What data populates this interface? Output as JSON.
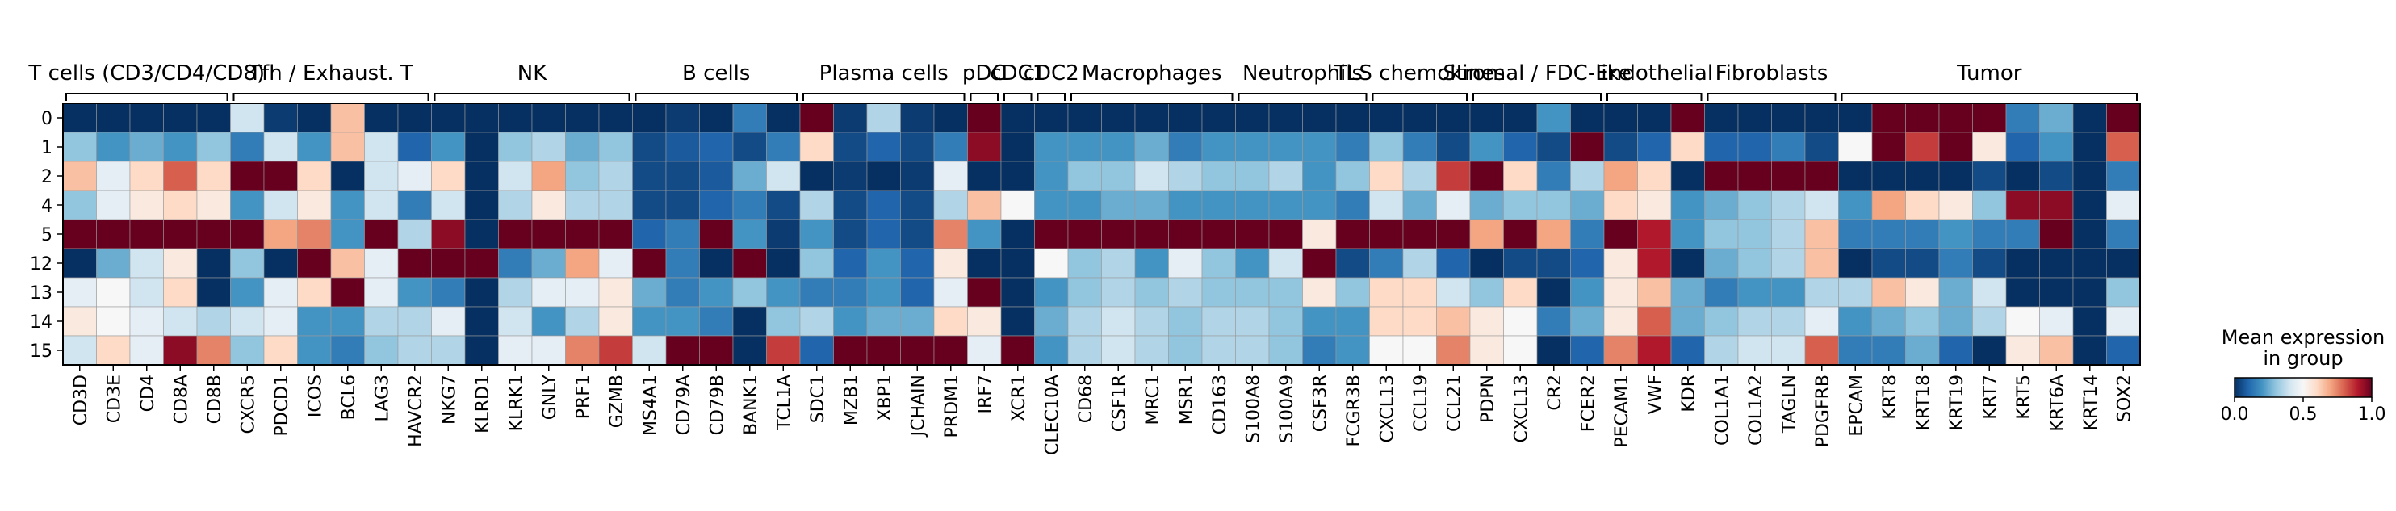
{
  "chart_data": {
    "type": "heatmap",
    "colormap": "RdBu_r",
    "rows": [
      "0",
      "1",
      "2",
      "4",
      "5",
      "12",
      "13",
      "14",
      "15"
    ],
    "columns": [
      "CD3D",
      "CD3E",
      "CD4",
      "CD8A",
      "CD8B",
      "CXCR5",
      "PDCD1",
      "ICOS",
      "BCL6",
      "LAG3",
      "HAVCR2",
      "NKG7",
      "KLRD1",
      "KLRK1",
      "GNLY",
      "PRF1",
      "GZMB",
      "MS4A1",
      "CD79A",
      "CD79B",
      "BANK1",
      "TCL1A",
      "SDC1",
      "MZB1",
      "XBP1",
      "JCHAIN",
      "PRDM1",
      "IRF7",
      "XCR1",
      "CLEC10A",
      "CD68",
      "CSF1R",
      "MRC1",
      "MSR1",
      "CD163",
      "S100A8",
      "S100A9",
      "CSF3R",
      "FCGR3B",
      "CXCL13",
      "CCL19",
      "CCL21",
      "PDPN",
      "CXCL13",
      "CR2",
      "FCER2",
      "PECAM1",
      "VWF",
      "KDR",
      "COL1A1",
      "COL1A2",
      "TAGLN",
      "PDGFRB",
      "EPCAM",
      "KRT8",
      "KRT18",
      "KRT19",
      "KRT7",
      "KRT5",
      "KRT6A",
      "KRT14",
      "SOX2"
    ],
    "groups": [
      {
        "label": "T cells (CD3/CD4/CD8)",
        "start": 0,
        "end": 4
      },
      {
        "label": "Tfh / Exhaust. T",
        "start": 5,
        "end": 10
      },
      {
        "label": "NK",
        "start": 11,
        "end": 16
      },
      {
        "label": "B cells",
        "start": 17,
        "end": 21
      },
      {
        "label": "Plasma cells",
        "start": 22,
        "end": 26
      },
      {
        "label": "pDC",
        "start": 27,
        "end": 27
      },
      {
        "label": "cDC1",
        "start": 28,
        "end": 28
      },
      {
        "label": "cDC2",
        "start": 29,
        "end": 29
      },
      {
        "label": "Macrophages",
        "start": 30,
        "end": 34
      },
      {
        "label": "Neutrophils",
        "start": 35,
        "end": 38
      },
      {
        "label": "TLS chemokines",
        "start": 39,
        "end": 41
      },
      {
        "label": "Stromal / FDC-like",
        "start": 42,
        "end": 45
      },
      {
        "label": "Endothelial",
        "start": 46,
        "end": 48
      },
      {
        "label": "Fibroblasts",
        "start": 49,
        "end": 52
      },
      {
        "label": "Tumor",
        "start": 53,
        "end": 61
      }
    ],
    "values": [
      [
        0.0,
        0.0,
        0.0,
        0.0,
        0.0,
        0.4,
        0.02,
        0.0,
        0.65,
        0.0,
        0.0,
        0.0,
        0.0,
        0.0,
        0.0,
        0.0,
        0.0,
        0.0,
        0.02,
        0.0,
        0.15,
        0.0,
        1.0,
        0.02,
        0.35,
        0.02,
        0.0,
        1.0,
        0.0,
        0.0,
        0.0,
        0.0,
        0.0,
        0.0,
        0.0,
        0.0,
        0.0,
        0.0,
        0.0,
        0.0,
        0.0,
        0.0,
        0.0,
        0.0,
        0.2,
        0.0,
        0.0,
        0.0,
        1.0,
        0.0,
        0.0,
        0.0,
        0.0,
        0.0,
        1.0,
        1.0,
        1.0,
        1.0,
        0.15,
        0.25,
        0.0,
        1.0
      ],
      [
        0.3,
        0.2,
        0.25,
        0.2,
        0.3,
        0.15,
        0.4,
        0.2,
        0.65,
        0.4,
        0.1,
        0.2,
        0.0,
        0.3,
        0.35,
        0.25,
        0.3,
        0.05,
        0.08,
        0.1,
        0.05,
        0.15,
        0.6,
        0.05,
        0.1,
        0.05,
        0.15,
        0.95,
        0.0,
        0.2,
        0.2,
        0.2,
        0.25,
        0.15,
        0.2,
        0.2,
        0.2,
        0.2,
        0.15,
        0.3,
        0.15,
        0.05,
        0.2,
        0.1,
        0.05,
        1.0,
        0.05,
        0.1,
        0.6,
        0.1,
        0.1,
        0.15,
        0.05,
        0.5,
        1.0,
        0.85,
        1.0,
        0.55,
        0.1,
        0.2,
        0.0,
        0.8
      ],
      [
        0.65,
        0.45,
        0.6,
        0.8,
        0.6,
        1.0,
        1.0,
        0.6,
        0.0,
        0.4,
        0.45,
        0.6,
        0.0,
        0.4,
        0.7,
        0.3,
        0.35,
        0.05,
        0.05,
        0.08,
        0.25,
        0.4,
        0.0,
        0.02,
        0.0,
        0.02,
        0.45,
        0.0,
        0.0,
        0.2,
        0.3,
        0.3,
        0.4,
        0.35,
        0.3,
        0.3,
        0.35,
        0.2,
        0.3,
        0.6,
        0.35,
        0.85,
        1.0,
        0.6,
        0.15,
        0.35,
        0.7,
        0.6,
        0.0,
        1.0,
        1.0,
        1.0,
        1.0,
        0.0,
        0.0,
        0.0,
        0.0,
        0.05,
        0.0,
        0.05,
        0.0,
        0.15
      ],
      [
        0.3,
        0.45,
        0.55,
        0.6,
        0.55,
        0.2,
        0.4,
        0.55,
        0.2,
        0.4,
        0.15,
        0.4,
        0.0,
        0.35,
        0.55,
        0.35,
        0.35,
        0.05,
        0.05,
        0.1,
        0.15,
        0.05,
        0.35,
        0.05,
        0.1,
        0.05,
        0.35,
        0.65,
        0.5,
        0.2,
        0.2,
        0.25,
        0.25,
        0.2,
        0.2,
        0.2,
        0.2,
        0.2,
        0.15,
        0.4,
        0.25,
        0.45,
        0.25,
        0.3,
        0.3,
        0.25,
        0.6,
        0.55,
        0.2,
        0.25,
        0.3,
        0.35,
        0.4,
        0.2,
        0.7,
        0.6,
        0.55,
        0.3,
        0.95,
        0.95,
        0.0,
        0.45
      ],
      [
        1.0,
        1.0,
        1.0,
        1.0,
        1.0,
        1.0,
        0.7,
        0.75,
        0.2,
        1.0,
        0.35,
        0.95,
        0.0,
        1.0,
        1.0,
        1.0,
        1.0,
        0.1,
        0.15,
        1.0,
        0.2,
        0.02,
        0.2,
        0.05,
        0.1,
        0.05,
        0.75,
        0.2,
        0.0,
        1.0,
        1.0,
        1.0,
        1.0,
        1.0,
        1.0,
        1.0,
        1.0,
        0.55,
        1.0,
        1.0,
        1.0,
        1.0,
        0.7,
        1.0,
        0.7,
        0.15,
        1.0,
        0.9,
        0.2,
        0.3,
        0.3,
        0.35,
        0.65,
        0.15,
        0.15,
        0.15,
        0.2,
        0.15,
        0.15,
        1.0,
        0.0,
        0.15
      ],
      [
        0.0,
        0.25,
        0.4,
        0.55,
        0.0,
        0.3,
        0.0,
        1.0,
        0.65,
        0.45,
        1.0,
        1.0,
        1.0,
        0.15,
        0.25,
        0.7,
        0.45,
        1.0,
        0.15,
        0.0,
        1.0,
        0.0,
        0.3,
        0.1,
        0.2,
        0.1,
        0.55,
        0.0,
        0.0,
        0.5,
        0.3,
        0.35,
        0.2,
        0.45,
        0.3,
        0.2,
        0.4,
        1.0,
        0.05,
        0.15,
        0.35,
        0.1,
        0.0,
        0.05,
        0.05,
        0.1,
        0.55,
        0.9,
        0.0,
        0.25,
        0.3,
        0.35,
        0.65,
        0.0,
        0.05,
        0.05,
        0.15,
        0.05,
        0.0,
        0.0,
        0.0,
        0.0
      ],
      [
        0.45,
        0.5,
        0.4,
        0.6,
        0.0,
        0.2,
        0.45,
        0.6,
        1.0,
        0.45,
        0.2,
        0.15,
        0.0,
        0.35,
        0.45,
        0.45,
        0.55,
        0.25,
        0.15,
        0.2,
        0.3,
        0.2,
        0.15,
        0.15,
        0.2,
        0.1,
        0.45,
        1.0,
        0.0,
        0.2,
        0.3,
        0.35,
        0.3,
        0.35,
        0.3,
        0.3,
        0.3,
        0.55,
        0.3,
        0.6,
        0.6,
        0.4,
        0.3,
        0.6,
        0.0,
        0.2,
        0.55,
        0.65,
        0.25,
        0.15,
        0.2,
        0.2,
        0.35,
        0.35,
        0.65,
        0.55,
        0.25,
        0.4,
        0.0,
        0.0,
        0.0,
        0.3
      ],
      [
        0.55,
        0.5,
        0.45,
        0.4,
        0.35,
        0.4,
        0.45,
        0.2,
        0.2,
        0.35,
        0.35,
        0.45,
        0.0,
        0.4,
        0.2,
        0.35,
        0.55,
        0.2,
        0.2,
        0.15,
        0.0,
        0.3,
        0.35,
        0.2,
        0.25,
        0.25,
        0.6,
        0.55,
        0.0,
        0.25,
        0.35,
        0.4,
        0.35,
        0.3,
        0.35,
        0.35,
        0.3,
        0.2,
        0.2,
        0.6,
        0.6,
        0.65,
        0.55,
        0.5,
        0.15,
        0.25,
        0.55,
        0.8,
        0.25,
        0.3,
        0.35,
        0.35,
        0.45,
        0.2,
        0.25,
        0.3,
        0.25,
        0.35,
        0.5,
        0.45,
        0.0,
        0.45
      ],
      [
        0.4,
        0.6,
        0.45,
        0.95,
        0.75,
        0.3,
        0.6,
        0.2,
        0.15,
        0.3,
        0.35,
        0.35,
        0.0,
        0.45,
        0.45,
        0.75,
        0.85,
        0.4,
        1.0,
        1.0,
        0.0,
        0.85,
        0.1,
        1.0,
        1.0,
        1.0,
        1.0,
        0.45,
        1.0,
        0.2,
        0.35,
        0.4,
        0.35,
        0.3,
        0.35,
        0.35,
        0.3,
        0.15,
        0.2,
        0.5,
        0.5,
        0.75,
        0.55,
        0.5,
        0.0,
        0.1,
        0.75,
        0.9,
        0.1,
        0.35,
        0.4,
        0.4,
        0.8,
        0.15,
        0.15,
        0.25,
        0.1,
        0.0,
        0.55,
        0.65,
        0.0,
        0.1
      ]
    ],
    "colorbar": {
      "title": "Mean expression\nin group",
      "ticks": [
        "0.0",
        "0.5",
        "1.0"
      ],
      "range": [
        0,
        1
      ]
    }
  }
}
